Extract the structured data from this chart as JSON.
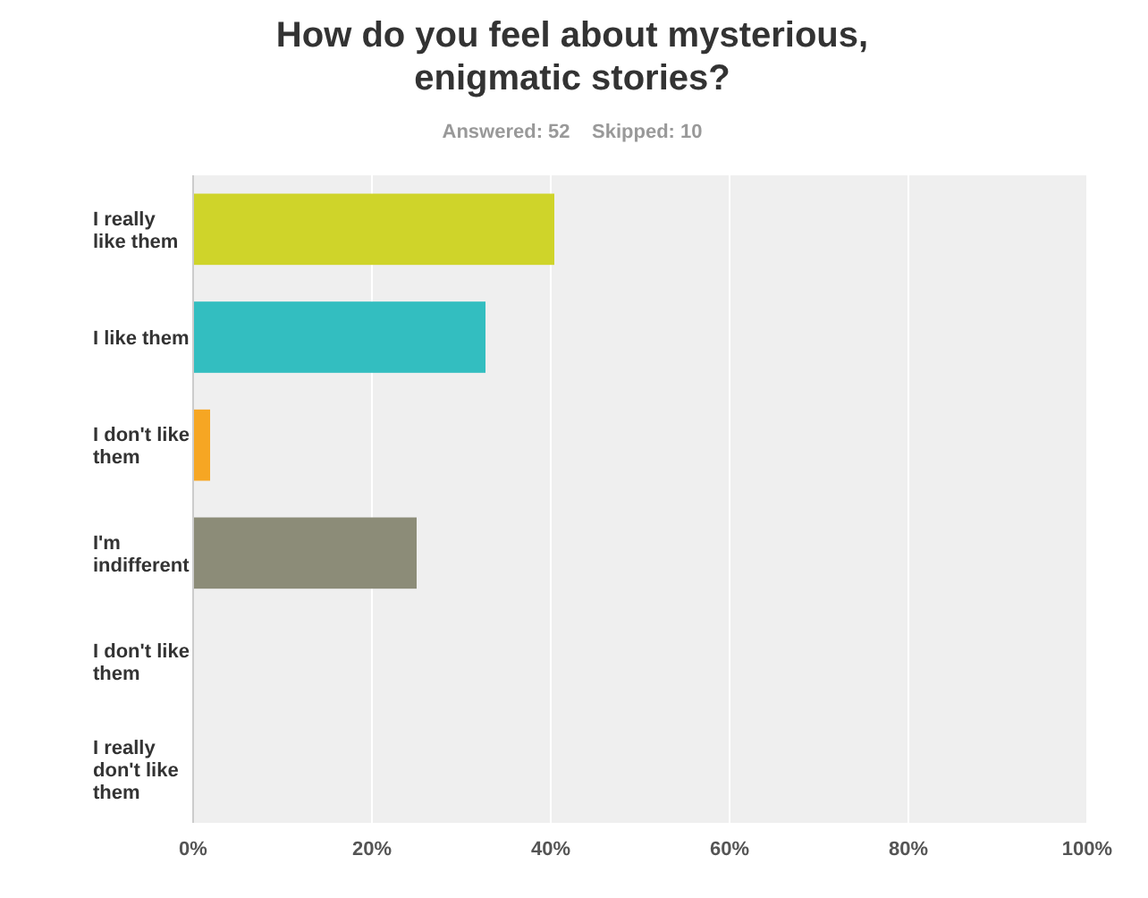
{
  "chart_data": {
    "type": "bar",
    "orientation": "horizontal",
    "title": "How do you feel about mysterious, enigmatic stories?",
    "subtitle": "Answered: 52    Skipped: 10",
    "categories": [
      "I really like them",
      "I like them",
      "I don't like them",
      "I'm indifferent",
      "I don't like them",
      "I really don't like them"
    ],
    "values": [
      40.4,
      32.7,
      1.9,
      25,
      0,
      0
    ],
    "colors": [
      "#cfd42a",
      "#33bec0",
      "#f6a623",
      "#8c8c78",
      "#cccccc",
      "#cccccc"
    ],
    "xlim": [
      0,
      100
    ],
    "xticks": [
      {
        "value": 0,
        "label": "0%"
      },
      {
        "value": 20,
        "label": "20%"
      },
      {
        "value": 40,
        "label": "40%"
      },
      {
        "value": 60,
        "label": "60%"
      },
      {
        "value": 80,
        "label": "80%"
      },
      {
        "value": 100,
        "label": "100%"
      }
    ],
    "grid": "x"
  }
}
